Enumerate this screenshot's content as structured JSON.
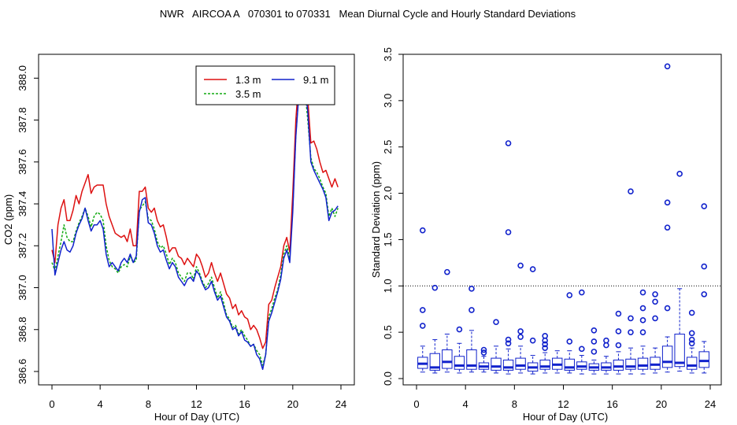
{
  "figure_title": "NWR   AIRCOA A   070301 to 070331   Mean Diurnal Cycle and Hourly Standard Deviations",
  "chart_data": [
    {
      "type": "line",
      "xlabel": "Hour of Day (UTC)",
      "ylabel": "CO2 (ppm)",
      "xlim": [
        0,
        24
      ],
      "ylim": [
        386.6,
        388.05
      ],
      "x_ticks": [
        "0",
        "4",
        "8",
        "12",
        "16",
        "20",
        "24"
      ],
      "y_ticks": [
        "386.6",
        "386.8",
        "387.0",
        "387.2",
        "387.4",
        "387.6",
        "387.8",
        "388.0"
      ],
      "legend_position": "top-right",
      "series": [
        {
          "name": "1.3 m",
          "color": "#dd1111",
          "style": "solid",
          "x": [
            0,
            0.25,
            0.5,
            0.75,
            1,
            1.25,
            1.5,
            1.75,
            2,
            2.25,
            2.5,
            2.75,
            3,
            3.25,
            3.5,
            3.75,
            4,
            4.25,
            4.5,
            4.75,
            5,
            5.25,
            5.5,
            5.75,
            6,
            6.25,
            6.5,
            6.75,
            7,
            7.25,
            7.5,
            7.75,
            8,
            8.25,
            8.5,
            8.75,
            9,
            9.25,
            9.5,
            9.75,
            10,
            10.25,
            10.5,
            10.75,
            11,
            11.25,
            11.5,
            11.75,
            12,
            12.25,
            12.5,
            12.75,
            13,
            13.25,
            13.5,
            13.75,
            14,
            14.25,
            14.5,
            14.75,
            15,
            15.25,
            15.5,
            15.75,
            16,
            16.25,
            16.5,
            16.75,
            17,
            17.25,
            17.5,
            17.75,
            18,
            18.25,
            18.5,
            18.75,
            19,
            19.25,
            19.5,
            19.75,
            20,
            20.25,
            20.5,
            20.75,
            21,
            21.25,
            21.5,
            21.75,
            22,
            22.25,
            22.5,
            22.75,
            23,
            23.25,
            23.5,
            23.75
          ],
          "y": [
            387.18,
            387.12,
            387.3,
            387.38,
            387.42,
            387.32,
            387.32,
            387.37,
            387.44,
            387.4,
            387.46,
            387.5,
            387.54,
            387.45,
            387.48,
            387.49,
            387.49,
            387.49,
            387.4,
            387.34,
            387.3,
            387.26,
            387.25,
            387.24,
            387.25,
            387.22,
            387.28,
            387.2,
            387.2,
            387.46,
            387.46,
            387.48,
            387.38,
            387.36,
            387.38,
            387.32,
            387.29,
            387.3,
            387.24,
            387.17,
            387.19,
            387.19,
            387.15,
            387.14,
            387.11,
            387.14,
            387.12,
            387.1,
            387.16,
            387.14,
            387.1,
            387.05,
            387.07,
            387.12,
            387.07,
            387.03,
            387.07,
            387.02,
            386.97,
            386.95,
            386.9,
            386.92,
            386.87,
            386.89,
            386.86,
            386.85,
            386.8,
            386.82,
            386.8,
            386.76,
            386.71,
            386.74,
            386.92,
            386.94,
            387.0,
            387.05,
            387.1,
            387.2,
            387.24,
            387.17,
            387.45,
            387.8,
            388.0,
            388.04,
            388.02,
            387.9,
            387.69,
            387.7,
            387.66,
            387.6,
            387.55,
            387.56,
            387.52,
            387.48,
            387.52,
            387.48
          ]
        },
        {
          "name": "3.5 m",
          "color": "#11aa11",
          "style": "dashed",
          "x": [
            0,
            0.25,
            0.5,
            0.75,
            1,
            1.25,
            1.5,
            1.75,
            2,
            2.25,
            2.5,
            2.75,
            3,
            3.25,
            3.5,
            3.75,
            4,
            4.25,
            4.5,
            4.75,
            5,
            5.25,
            5.5,
            5.75,
            6,
            6.25,
            6.5,
            6.75,
            7,
            7.25,
            7.5,
            7.75,
            8,
            8.25,
            8.5,
            8.75,
            9,
            9.25,
            9.5,
            9.75,
            10,
            10.25,
            10.5,
            10.75,
            11,
            11.25,
            11.5,
            11.75,
            12,
            12.25,
            12.5,
            12.75,
            13,
            13.25,
            13.5,
            13.75,
            14,
            14.25,
            14.5,
            14.75,
            15,
            15.25,
            15.5,
            15.75,
            16,
            16.25,
            16.5,
            16.75,
            17,
            17.25,
            17.5,
            17.75,
            18,
            18.25,
            18.5,
            18.75,
            19,
            19.25,
            19.5,
            19.75,
            20,
            20.25,
            20.5,
            20.75,
            21,
            21.25,
            21.5,
            21.75,
            22,
            22.25,
            22.5,
            22.75,
            23,
            23.25,
            23.5,
            23.75
          ],
          "y": [
            387.12,
            387.08,
            387.15,
            387.22,
            387.3,
            387.24,
            387.22,
            387.22,
            387.27,
            387.31,
            387.34,
            387.38,
            387.34,
            387.29,
            387.34,
            387.36,
            387.35,
            387.32,
            387.2,
            387.13,
            387.1,
            387.09,
            387.07,
            387.1,
            387.11,
            387.1,
            387.15,
            387.12,
            387.13,
            387.37,
            387.39,
            387.41,
            387.33,
            387.32,
            387.28,
            387.22,
            387.19,
            387.2,
            387.16,
            387.11,
            387.14,
            387.12,
            387.07,
            387.05,
            387.03,
            387.07,
            387.07,
            387.04,
            387.1,
            387.07,
            387.03,
            387.0,
            387.02,
            387.05,
            387.0,
            386.95,
            386.98,
            386.93,
            386.87,
            386.85,
            386.81,
            386.82,
            386.78,
            386.8,
            386.77,
            386.75,
            386.72,
            386.73,
            386.7,
            386.68,
            386.63,
            386.68,
            386.86,
            386.9,
            386.95,
            386.99,
            387.06,
            387.16,
            387.2,
            387.14,
            387.38,
            387.73,
            387.93,
            387.98,
            387.95,
            387.8,
            387.62,
            387.57,
            387.55,
            387.52,
            387.48,
            387.45,
            387.34,
            387.38,
            387.34,
            387.38
          ]
        },
        {
          "name": "9.1 m",
          "color": "#1122cc",
          "style": "solid",
          "x": [
            0,
            0.25,
            0.5,
            0.75,
            1,
            1.25,
            1.5,
            1.75,
            2,
            2.25,
            2.5,
            2.75,
            3,
            3.25,
            3.5,
            3.75,
            4,
            4.25,
            4.5,
            4.75,
            5,
            5.25,
            5.5,
            5.75,
            6,
            6.25,
            6.5,
            6.75,
            7,
            7.25,
            7.5,
            7.75,
            8,
            8.25,
            8.5,
            8.75,
            9,
            9.25,
            9.5,
            9.75,
            10,
            10.25,
            10.5,
            10.75,
            11,
            11.25,
            11.5,
            11.75,
            12,
            12.25,
            12.5,
            12.75,
            13,
            13.25,
            13.5,
            13.75,
            14,
            14.25,
            14.5,
            14.75,
            15,
            15.25,
            15.5,
            15.75,
            16,
            16.25,
            16.5,
            16.75,
            17,
            17.25,
            17.5,
            17.75,
            18,
            18.25,
            18.5,
            18.75,
            19,
            19.25,
            19.5,
            19.75,
            20,
            20.25,
            20.5,
            20.75,
            21,
            21.25,
            21.5,
            21.75,
            22,
            22.25,
            22.5,
            22.75,
            23,
            23.25,
            23.5,
            23.75
          ],
          "y": [
            387.28,
            387.06,
            387.12,
            387.18,
            387.22,
            387.18,
            387.17,
            387.2,
            387.26,
            387.3,
            387.33,
            387.38,
            387.32,
            387.27,
            387.3,
            387.3,
            387.32,
            387.28,
            387.16,
            387.1,
            387.12,
            387.1,
            387.08,
            387.12,
            387.14,
            387.12,
            387.16,
            387.12,
            387.15,
            387.36,
            387.42,
            387.43,
            387.31,
            387.3,
            387.26,
            387.2,
            387.17,
            387.18,
            387.13,
            387.09,
            387.12,
            387.1,
            387.05,
            387.03,
            387.01,
            387.04,
            387.05,
            387.03,
            387.08,
            387.06,
            387.02,
            386.99,
            387.0,
            387.03,
            386.98,
            386.94,
            386.96,
            386.91,
            386.86,
            386.84,
            386.8,
            386.81,
            386.77,
            386.79,
            386.75,
            386.74,
            386.72,
            386.73,
            386.68,
            386.66,
            386.61,
            386.68,
            386.84,
            386.88,
            386.93,
            386.98,
            387.04,
            387.14,
            387.18,
            387.12,
            387.36,
            387.72,
            387.92,
            387.98,
            387.97,
            387.84,
            387.6,
            387.56,
            387.53,
            387.5,
            387.47,
            387.43,
            387.32,
            387.36,
            387.37,
            387.39
          ]
        }
      ]
    },
    {
      "type": "boxplot",
      "xlabel": "Hour of Day (UTC)",
      "ylabel": "Standard Deviation (ppm)",
      "xlim": [
        0,
        24
      ],
      "ylim": [
        0,
        3.5
      ],
      "x_ticks": [
        "0",
        "4",
        "8",
        "12",
        "16",
        "20",
        "24"
      ],
      "y_ticks": [
        "0.0",
        "0.5",
        "1.0",
        "1.5",
        "2.0",
        "2.5",
        "3.0",
        "3.5"
      ],
      "reference_line": 1.0,
      "box_color": "#1122cc",
      "boxes": [
        {
          "hour": 0.5,
          "whislo": 0.07,
          "q1": 0.11,
          "med": 0.16,
          "q3": 0.23,
          "whishi": 0.35,
          "outliers": [
            0.57,
            0.74,
            1.6
          ]
        },
        {
          "hour": 1.5,
          "whislo": 0.06,
          "q1": 0.09,
          "med": 0.12,
          "q3": 0.27,
          "whishi": 0.42,
          "outliers": [
            0.98
          ]
        },
        {
          "hour": 2.5,
          "whislo": 0.07,
          "q1": 0.11,
          "med": 0.18,
          "q3": 0.31,
          "whishi": 0.48,
          "outliers": [
            1.15
          ]
        },
        {
          "hour": 3.5,
          "whislo": 0.06,
          "q1": 0.1,
          "med": 0.14,
          "q3": 0.24,
          "whishi": 0.38,
          "outliers": [
            0.53
          ]
        },
        {
          "hour": 4.5,
          "whislo": 0.07,
          "q1": 0.1,
          "med": 0.14,
          "q3": 0.31,
          "whishi": 0.52,
          "outliers": [
            0.74,
            0.97
          ]
        },
        {
          "hour": 5.5,
          "whislo": 0.07,
          "q1": 0.1,
          "med": 0.13,
          "q3": 0.17,
          "whishi": 0.24,
          "outliers": [
            0.28,
            0.31
          ]
        },
        {
          "hour": 6.5,
          "whislo": 0.06,
          "q1": 0.09,
          "med": 0.13,
          "q3": 0.22,
          "whishi": 0.35,
          "outliers": [
            0.61
          ]
        },
        {
          "hour": 7.5,
          "whislo": 0.05,
          "q1": 0.09,
          "med": 0.12,
          "q3": 0.2,
          "whishi": 0.32,
          "outliers": [
            0.38,
            0.42,
            1.58,
            2.54
          ]
        },
        {
          "hour": 8.5,
          "whislo": 0.06,
          "q1": 0.1,
          "med": 0.14,
          "q3": 0.22,
          "whishi": 0.35,
          "outliers": [
            0.45,
            0.51,
            1.22
          ]
        },
        {
          "hour": 9.5,
          "whislo": 0.05,
          "q1": 0.08,
          "med": 0.12,
          "q3": 0.17,
          "whishi": 0.25,
          "outliers": [
            0.41,
            1.18
          ]
        },
        {
          "hour": 10.5,
          "whislo": 0.06,
          "q1": 0.1,
          "med": 0.13,
          "q3": 0.2,
          "whishi": 0.28,
          "outliers": [
            0.33,
            0.37,
            0.41,
            0.46
          ]
        },
        {
          "hour": 11.5,
          "whislo": 0.06,
          "q1": 0.1,
          "med": 0.15,
          "q3": 0.22,
          "whishi": 0.3,
          "outliers": []
        },
        {
          "hour": 12.5,
          "whislo": 0.06,
          "q1": 0.09,
          "med": 0.12,
          "q3": 0.21,
          "whishi": 0.3,
          "outliers": [
            0.4,
            0.9
          ]
        },
        {
          "hour": 13.5,
          "whislo": 0.05,
          "q1": 0.1,
          "med": 0.13,
          "q3": 0.18,
          "whishi": 0.25,
          "outliers": [
            0.32,
            0.93
          ]
        },
        {
          "hour": 14.5,
          "whislo": 0.05,
          "q1": 0.09,
          "med": 0.12,
          "q3": 0.16,
          "whishi": 0.2,
          "outliers": [
            0.29,
            0.4,
            0.52
          ]
        },
        {
          "hour": 15.5,
          "whislo": 0.05,
          "q1": 0.09,
          "med": 0.12,
          "q3": 0.17,
          "whishi": 0.24,
          "outliers": [
            0.36,
            0.41
          ]
        },
        {
          "hour": 16.5,
          "whislo": 0.05,
          "q1": 0.09,
          "med": 0.13,
          "q3": 0.2,
          "whishi": 0.29,
          "outliers": [
            0.36,
            0.51,
            0.7
          ]
        },
        {
          "hour": 17.5,
          "whislo": 0.05,
          "q1": 0.1,
          "med": 0.13,
          "q3": 0.21,
          "whishi": 0.33,
          "outliers": [
            0.5,
            0.65,
            2.02
          ]
        },
        {
          "hour": 18.5,
          "whislo": 0.05,
          "q1": 0.1,
          "med": 0.14,
          "q3": 0.22,
          "whishi": 0.35,
          "outliers": [
            0.5,
            0.63,
            0.76,
            0.93
          ]
        },
        {
          "hour": 19.5,
          "whislo": 0.06,
          "q1": 0.1,
          "med": 0.15,
          "q3": 0.23,
          "whishi": 0.33,
          "outliers": [
            0.65,
            0.83,
            0.91
          ]
        },
        {
          "hour": 20.5,
          "whislo": 0.07,
          "q1": 0.12,
          "med": 0.18,
          "q3": 0.35,
          "whishi": 0.45,
          "outliers": [
            0.76,
            1.63,
            1.9,
            3.37
          ]
        },
        {
          "hour": 21.5,
          "whislo": 0.08,
          "q1": 0.13,
          "med": 0.17,
          "q3": 0.48,
          "whishi": 0.97,
          "outliers": [
            2.21
          ]
        },
        {
          "hour": 22.5,
          "whislo": 0.06,
          "q1": 0.1,
          "med": 0.14,
          "q3": 0.23,
          "whishi": 0.33,
          "outliers": [
            0.38,
            0.42,
            0.49,
            0.71
          ]
        },
        {
          "hour": 23.5,
          "whislo": 0.06,
          "q1": 0.12,
          "med": 0.19,
          "q3": 0.29,
          "whishi": 0.4,
          "outliers": [
            0.91,
            1.21,
            1.86
          ]
        }
      ]
    }
  ]
}
